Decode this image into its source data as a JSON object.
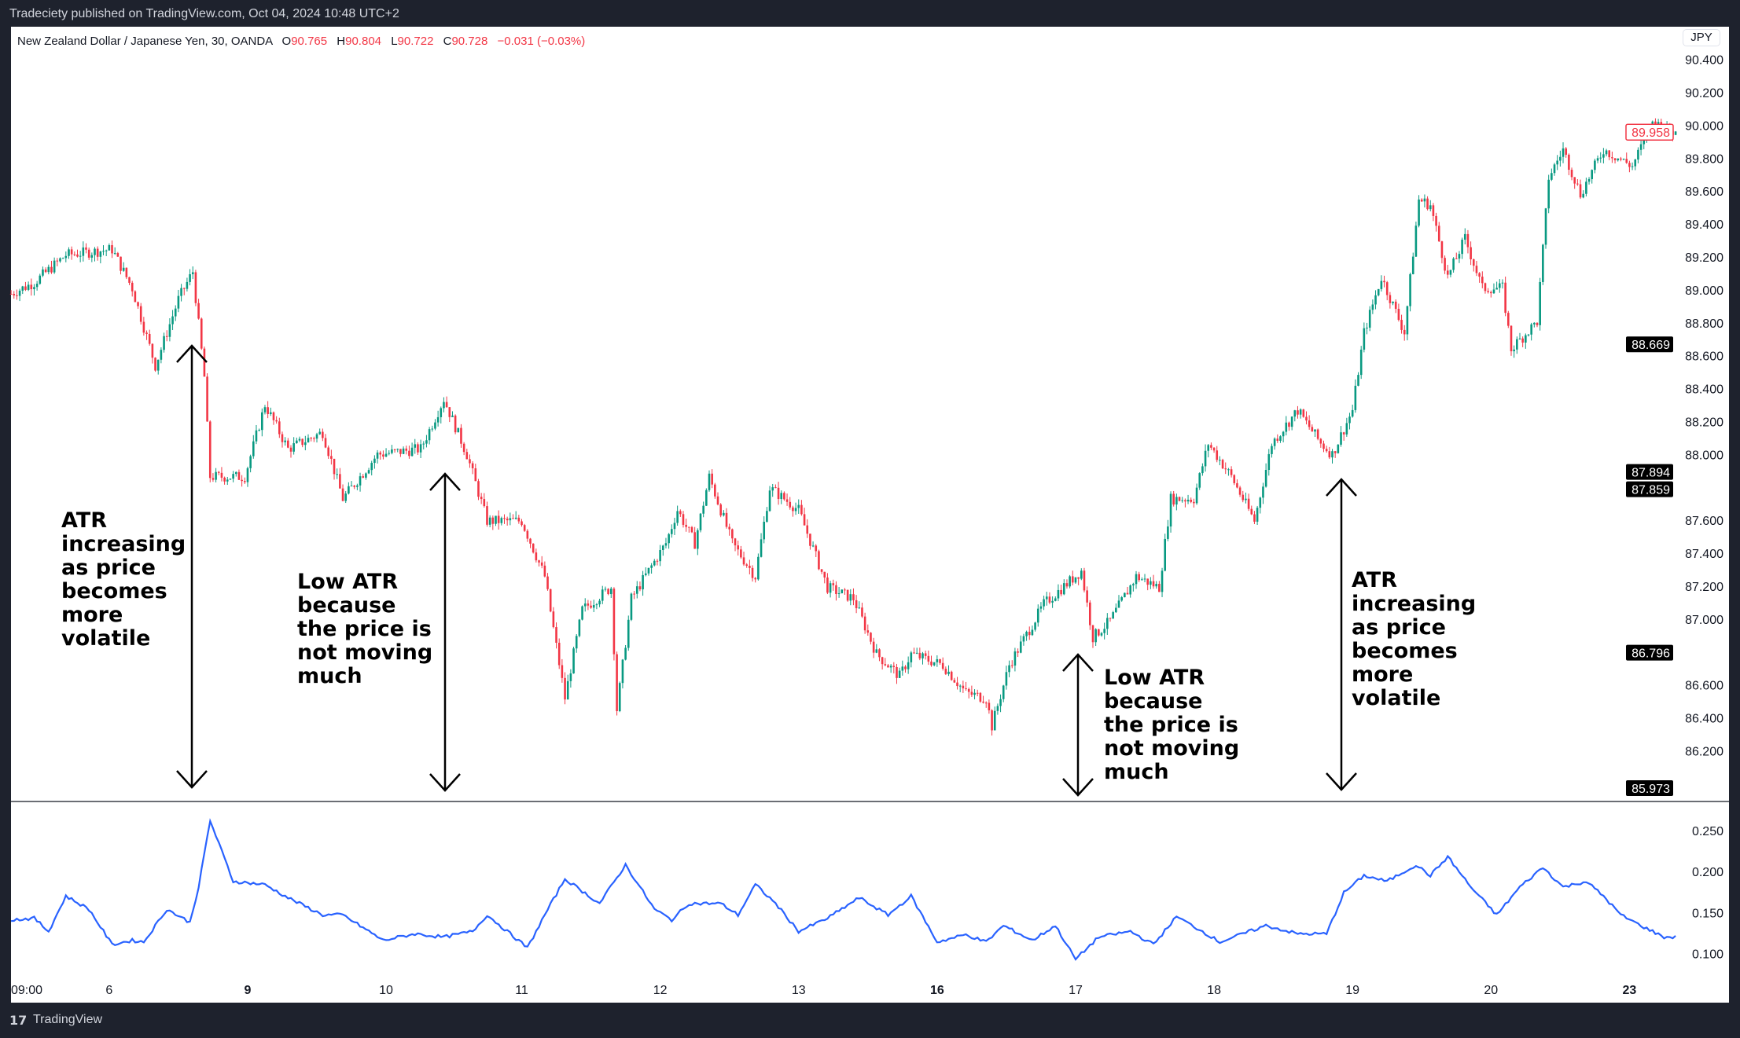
{
  "header": {
    "published": "Tradeciety published on TradingView.com, Oct 04, 2024 10:48 UTC+2"
  },
  "legend": {
    "symbol": "New Zealand Dollar / Japanese Yen, 30, OANDA",
    "o_label": "O",
    "o": "90.765",
    "h_label": "H",
    "h": "90.804",
    "l_label": "L",
    "l": "90.722",
    "c_label": "C",
    "c": "90.728",
    "change": "−0.031 (−0.03%)"
  },
  "currency_button": "JPY",
  "footer": {
    "logo": "17",
    "name": "TradingView"
  },
  "colors": {
    "up": "#089981",
    "down": "#f23645",
    "atr": "#2962ff",
    "badge": "#000000"
  },
  "annotations": [
    {
      "text": "ATR\nincreasing\nas price\nbecomes\nmore\nvolatile"
    },
    {
      "text": "Low ATR\nbecause\nthe price is\nnot moving\nmuch"
    },
    {
      "text": "Low ATR\nbecause\nthe price is\nnot moving\nmuch"
    },
    {
      "text": "ATR\nincreasing\nas price\nbecomes\nmore\nvolatile"
    }
  ],
  "chart_data": [
    {
      "type": "candlestick",
      "title": "NZDJPY 30m",
      "ylim": [
        86.0,
        90.45
      ],
      "y_ticks": [
        "90.400",
        "90.200",
        "90.000",
        "89.800",
        "89.600",
        "89.400",
        "89.200",
        "89.000",
        "88.800",
        "88.600",
        "88.400",
        "88.200",
        "88.000",
        "87.600",
        "87.400",
        "87.200",
        "87.000",
        "86.600",
        "86.400",
        "86.200"
      ],
      "y_tick_values": [
        90.4,
        90.2,
        90.0,
        89.8,
        89.6,
        89.4,
        89.2,
        89.0,
        88.8,
        88.6,
        88.4,
        88.2,
        88.0,
        87.6,
        87.4,
        87.2,
        87.0,
        86.6,
        86.4,
        86.2
      ],
      "price_badges": [
        {
          "label": "89.958",
          "value": 89.958,
          "style": "current"
        },
        {
          "label": "88.669",
          "value": 88.669,
          "style": "dark"
        },
        {
          "label": "87.894",
          "value": 87.894,
          "style": "dark"
        },
        {
          "label": "87.859",
          "value": 87.859,
          "style": "dark"
        },
        {
          "label": "86.796",
          "value": 86.796,
          "style": "dark"
        },
        {
          "label": "85.973",
          "value": 85.973,
          "style": "dark"
        }
      ],
      "close_keypoints": [
        [
          0,
          88.976
        ],
        [
          8,
          89.044
        ],
        [
          19,
          89.212
        ],
        [
          35,
          89.246
        ],
        [
          42,
          89.01
        ],
        [
          50,
          88.539
        ],
        [
          58,
          88.943
        ],
        [
          63,
          89.111
        ],
        [
          67,
          88.471
        ],
        [
          69,
          87.865
        ],
        [
          81,
          87.865
        ],
        [
          88,
          88.303
        ],
        [
          96,
          88.034
        ],
        [
          108,
          88.135
        ],
        [
          115,
          87.731
        ],
        [
          127,
          88.0
        ],
        [
          142,
          88.034
        ],
        [
          150,
          88.337
        ],
        [
          158,
          88.0
        ],
        [
          165,
          87.596
        ],
        [
          177,
          87.596
        ],
        [
          185,
          87.259
        ],
        [
          192,
          86.519
        ],
        [
          198,
          87.057
        ],
        [
          208,
          87.192
        ],
        [
          210,
          86.451
        ],
        [
          215,
          87.125
        ],
        [
          227,
          87.461
        ],
        [
          231,
          87.663
        ],
        [
          237,
          87.461
        ],
        [
          242,
          87.865
        ],
        [
          250,
          87.461
        ],
        [
          258,
          87.259
        ],
        [
          263,
          87.798
        ],
        [
          273,
          87.663
        ],
        [
          283,
          87.192
        ],
        [
          292,
          87.125
        ],
        [
          300,
          86.788
        ],
        [
          308,
          86.653
        ],
        [
          312,
          86.788
        ],
        [
          323,
          86.721
        ],
        [
          331,
          86.552
        ],
        [
          338,
          86.519
        ],
        [
          340,
          86.35
        ],
        [
          346,
          86.721
        ],
        [
          358,
          87.091
        ],
        [
          371,
          87.293
        ],
        [
          375,
          86.889
        ],
        [
          381,
          86.99
        ],
        [
          390,
          87.259
        ],
        [
          398,
          87.192
        ],
        [
          402,
          87.731
        ],
        [
          410,
          87.731
        ],
        [
          415,
          88.067
        ],
        [
          423,
          87.865
        ],
        [
          431,
          87.596
        ],
        [
          437,
          88.067
        ],
        [
          446,
          88.269
        ],
        [
          454,
          88.067
        ],
        [
          458,
          88.0
        ],
        [
          465,
          88.269
        ],
        [
          469,
          88.741
        ],
        [
          475,
          89.077
        ],
        [
          483,
          88.741
        ],
        [
          488,
          89.549
        ],
        [
          492,
          89.515
        ],
        [
          498,
          89.077
        ],
        [
          504,
          89.313
        ],
        [
          510,
          89.01
        ],
        [
          517,
          89.01
        ],
        [
          520,
          88.64
        ],
        [
          529,
          88.808
        ],
        [
          533,
          89.684
        ],
        [
          538,
          89.852
        ],
        [
          544,
          89.582
        ],
        [
          552,
          89.852
        ],
        [
          562,
          89.751
        ],
        [
          569,
          90.02
        ],
        [
          577,
          89.953
        ]
      ]
    },
    {
      "type": "line",
      "title": "ATR",
      "ylim": [
        0.08,
        0.28
      ],
      "y_ticks": [
        "0.250",
        "0.200",
        "0.150",
        "0.100"
      ],
      "y_tick_values": [
        0.25,
        0.2,
        0.15,
        0.1
      ],
      "series": [
        {
          "name": "ATR",
          "points": [
            [
              0,
              0.141
            ],
            [
              8,
              0.143
            ],
            [
              13,
              0.127
            ],
            [
              19,
              0.17
            ],
            [
              27,
              0.154
            ],
            [
              35,
              0.111
            ],
            [
              42,
              0.116
            ],
            [
              46,
              0.114
            ],
            [
              54,
              0.154
            ],
            [
              62,
              0.138
            ],
            [
              65,
              0.181
            ],
            [
              69,
              0.262
            ],
            [
              77,
              0.188
            ],
            [
              88,
              0.184
            ],
            [
              96,
              0.168
            ],
            [
              108,
              0.147
            ],
            [
              115,
              0.147
            ],
            [
              129,
              0.116
            ],
            [
              140,
              0.124
            ],
            [
              150,
              0.12
            ],
            [
              160,
              0.127
            ],
            [
              165,
              0.147
            ],
            [
              179,
              0.107
            ],
            [
              185,
              0.147
            ],
            [
              192,
              0.191
            ],
            [
              204,
              0.161
            ],
            [
              213,
              0.208
            ],
            [
              223,
              0.154
            ],
            [
              229,
              0.141
            ],
            [
              235,
              0.161
            ],
            [
              246,
              0.161
            ],
            [
              252,
              0.147
            ],
            [
              258,
              0.184
            ],
            [
              265,
              0.161
            ],
            [
              273,
              0.127
            ],
            [
              283,
              0.143
            ],
            [
              294,
              0.168
            ],
            [
              304,
              0.147
            ],
            [
              312,
              0.17
            ],
            [
              321,
              0.114
            ],
            [
              331,
              0.123
            ],
            [
              338,
              0.114
            ],
            [
              344,
              0.134
            ],
            [
              354,
              0.116
            ],
            [
              362,
              0.134
            ],
            [
              369,
              0.093
            ],
            [
              377,
              0.12
            ],
            [
              388,
              0.127
            ],
            [
              396,
              0.111
            ],
            [
              404,
              0.145
            ],
            [
              413,
              0.127
            ],
            [
              419,
              0.114
            ],
            [
              435,
              0.134
            ],
            [
              446,
              0.124
            ],
            [
              456,
              0.124
            ],
            [
              462,
              0.174
            ],
            [
              469,
              0.195
            ],
            [
              477,
              0.188
            ],
            [
              487,
              0.208
            ],
            [
              492,
              0.195
            ],
            [
              498,
              0.218
            ],
            [
              506,
              0.181
            ],
            [
              515,
              0.147
            ],
            [
              523,
              0.181
            ],
            [
              531,
              0.205
            ],
            [
              538,
              0.181
            ],
            [
              546,
              0.188
            ],
            [
              552,
              0.17
            ],
            [
              558,
              0.147
            ],
            [
              565,
              0.134
            ],
            [
              573,
              0.12
            ],
            [
              577,
              0.12
            ]
          ]
        }
      ]
    },
    {
      "type": "time_axis",
      "x_ticks": [
        {
          "label": "09:00",
          "bar": 0,
          "bold": false
        },
        {
          "label": "6",
          "bar": 34,
          "bold": false
        },
        {
          "label": "9",
          "bar": 82,
          "bold": true
        },
        {
          "label": "10",
          "bar": 130,
          "bold": false
        },
        {
          "label": "11",
          "bar": 177,
          "bold": false
        },
        {
          "label": "12",
          "bar": 225,
          "bold": false
        },
        {
          "label": "13",
          "bar": 273,
          "bold": false
        },
        {
          "label": "16",
          "bar": 321,
          "bold": true
        },
        {
          "label": "17",
          "bar": 369,
          "bold": false
        },
        {
          "label": "18",
          "bar": 417,
          "bold": false
        },
        {
          "label": "19",
          "bar": 465,
          "bold": false
        },
        {
          "label": "20",
          "bar": 513,
          "bold": false
        },
        {
          "label": "23",
          "bar": 561,
          "bold": true
        }
      ]
    }
  ]
}
